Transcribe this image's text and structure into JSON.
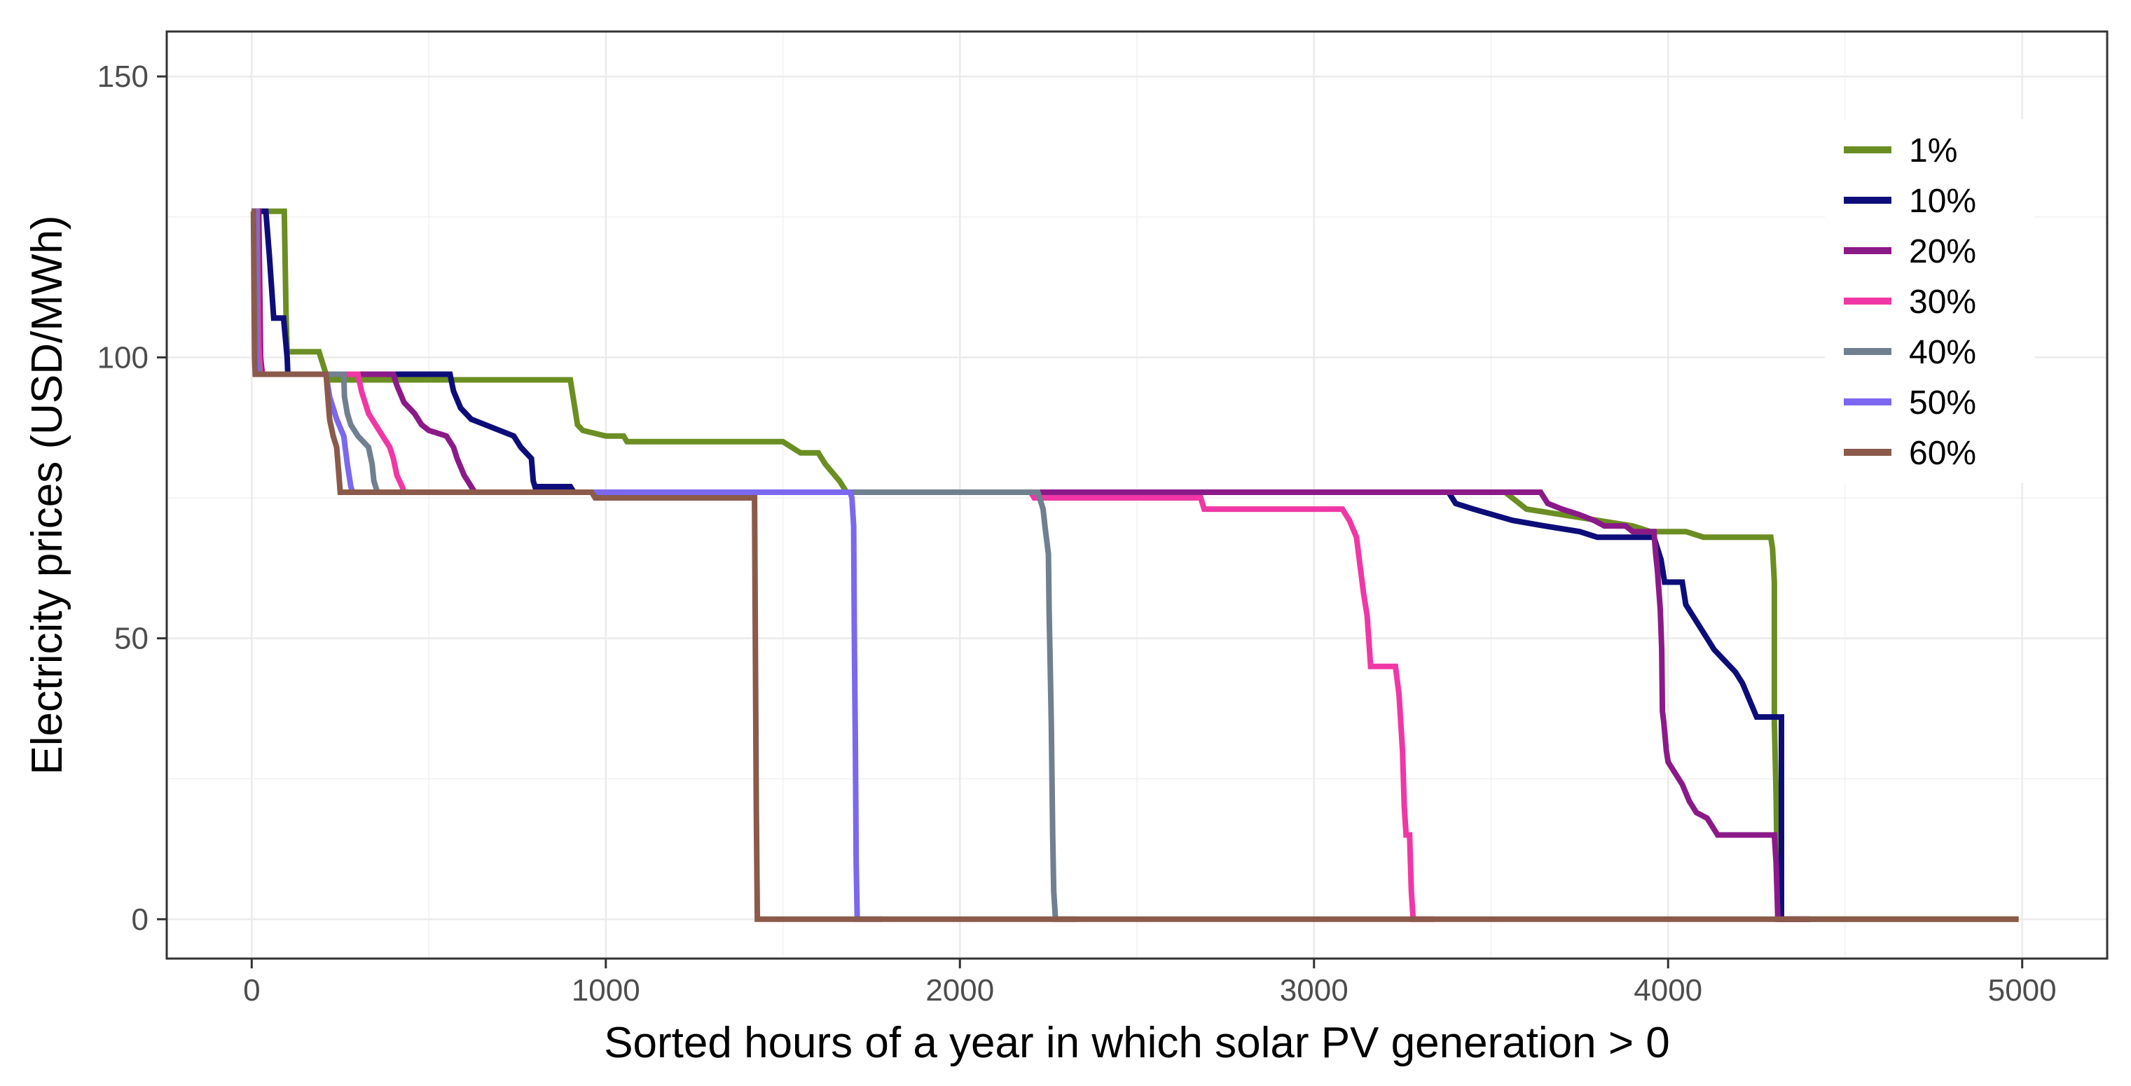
{
  "chart_data": {
    "type": "line",
    "title": "",
    "xlabel": "Sorted hours of a year in which solar PV generation > 0",
    "ylabel": "Electricity prices (USD/MWh)",
    "xlim": [
      -240,
      5240
    ],
    "ylim": [
      -7,
      158
    ],
    "x_ticks": [
      0,
      1000,
      2000,
      3000,
      4000,
      5000
    ],
    "x_tick_labels": [
      "0",
      "1000",
      "2000",
      "3000",
      "4000",
      "5000"
    ],
    "y_ticks": [
      0,
      50,
      100,
      150
    ],
    "y_tick_labels": [
      "0",
      "50",
      "100",
      "150"
    ],
    "grid": true,
    "legend_position": "top-right",
    "series": [
      {
        "name": "1%",
        "color": "#6b8e23",
        "points": [
          [
            0,
            126
          ],
          [
            92,
            126
          ],
          [
            97,
            108
          ],
          [
            100,
            101
          ],
          [
            190,
            101
          ],
          [
            200,
            99
          ],
          [
            215,
            96
          ],
          [
            900,
            96
          ],
          [
            910,
            92
          ],
          [
            920,
            88
          ],
          [
            935,
            87
          ],
          [
            1000,
            86
          ],
          [
            1050,
            86
          ],
          [
            1060,
            85
          ],
          [
            1500,
            85
          ],
          [
            1550,
            83
          ],
          [
            1600,
            83
          ],
          [
            1620,
            81
          ],
          [
            1660,
            78
          ],
          [
            1680,
            76
          ],
          [
            3400,
            76
          ],
          [
            3540,
            76
          ],
          [
            3600,
            73
          ],
          [
            3700,
            72
          ],
          [
            3800,
            71
          ],
          [
            3900,
            70
          ],
          [
            3950,
            69
          ],
          [
            4050,
            69
          ],
          [
            4100,
            68
          ],
          [
            4290,
            68
          ],
          [
            4295,
            66
          ],
          [
            4300,
            60
          ],
          [
            4300,
            35
          ],
          [
            4305,
            22
          ],
          [
            4310,
            0
          ],
          [
            4990,
            0
          ]
        ]
      },
      {
        "name": "10%",
        "color": "#0d0d7a",
        "points": [
          [
            0,
            126
          ],
          [
            40,
            126
          ],
          [
            50,
            118
          ],
          [
            62,
            107
          ],
          [
            90,
            107
          ],
          [
            100,
            100
          ],
          [
            102,
            97
          ],
          [
            560,
            97
          ],
          [
            570,
            94
          ],
          [
            590,
            91
          ],
          [
            620,
            89
          ],
          [
            660,
            88
          ],
          [
            700,
            87
          ],
          [
            740,
            86
          ],
          [
            760,
            84
          ],
          [
            790,
            82
          ],
          [
            795,
            78
          ],
          [
            800,
            77
          ],
          [
            900,
            77
          ],
          [
            910,
            76
          ],
          [
            3380,
            76
          ],
          [
            3400,
            74
          ],
          [
            3450,
            73
          ],
          [
            3560,
            71
          ],
          [
            3650,
            70
          ],
          [
            3750,
            69
          ],
          [
            3800,
            68
          ],
          [
            3960,
            68
          ],
          [
            3970,
            66
          ],
          [
            3980,
            64
          ],
          [
            3990,
            60
          ],
          [
            4040,
            60
          ],
          [
            4050,
            56
          ],
          [
            4070,
            54
          ],
          [
            4100,
            51
          ],
          [
            4130,
            48
          ],
          [
            4160,
            46
          ],
          [
            4190,
            44
          ],
          [
            4210,
            42
          ],
          [
            4230,
            39
          ],
          [
            4250,
            36
          ],
          [
            4320,
            36
          ],
          [
            4320,
            0
          ],
          [
            4400,
            0
          ]
        ]
      },
      {
        "name": "20%",
        "color": "#8b1a89",
        "points": [
          [
            0,
            126
          ],
          [
            20,
            126
          ],
          [
            25,
            100
          ],
          [
            30,
            97
          ],
          [
            400,
            97
          ],
          [
            410,
            95
          ],
          [
            430,
            92
          ],
          [
            460,
            90
          ],
          [
            480,
            88
          ],
          [
            500,
            87
          ],
          [
            550,
            86
          ],
          [
            570,
            84
          ],
          [
            580,
            82
          ],
          [
            600,
            79
          ],
          [
            610,
            78
          ],
          [
            620,
            77
          ],
          [
            630,
            76
          ],
          [
            3640,
            76
          ],
          [
            3660,
            74
          ],
          [
            3700,
            73
          ],
          [
            3750,
            72
          ],
          [
            3790,
            71
          ],
          [
            3820,
            70
          ],
          [
            3880,
            70
          ],
          [
            3900,
            69
          ],
          [
            3960,
            69
          ],
          [
            3965,
            65
          ],
          [
            3970,
            62
          ],
          [
            3978,
            55
          ],
          [
            3982,
            48
          ],
          [
            3984,
            37
          ],
          [
            3988,
            35
          ],
          [
            3995,
            30
          ],
          [
            4000,
            28
          ],
          [
            4020,
            26
          ],
          [
            4040,
            24
          ],
          [
            4060,
            21
          ],
          [
            4080,
            19
          ],
          [
            4110,
            18
          ],
          [
            4130,
            16
          ],
          [
            4140,
            15
          ],
          [
            4300,
            15
          ],
          [
            4305,
            10
          ],
          [
            4310,
            0
          ],
          [
            4390,
            0
          ]
        ]
      },
      {
        "name": "30%",
        "color": "#f037a5",
        "points": [
          [
            0,
            126
          ],
          [
            15,
            126
          ],
          [
            20,
            102
          ],
          [
            25,
            97
          ],
          [
            300,
            97
          ],
          [
            310,
            94
          ],
          [
            330,
            90
          ],
          [
            350,
            88
          ],
          [
            370,
            86
          ],
          [
            390,
            84
          ],
          [
            400,
            82
          ],
          [
            410,
            79
          ],
          [
            425,
            77
          ],
          [
            430,
            76
          ],
          [
            2200,
            76
          ],
          [
            2210,
            75
          ],
          [
            2680,
            75
          ],
          [
            2690,
            73
          ],
          [
            3080,
            73
          ],
          [
            3100,
            71
          ],
          [
            3120,
            68
          ],
          [
            3130,
            63
          ],
          [
            3140,
            58
          ],
          [
            3150,
            54
          ],
          [
            3160,
            45
          ],
          [
            3230,
            45
          ],
          [
            3240,
            40
          ],
          [
            3250,
            30
          ],
          [
            3255,
            20
          ],
          [
            3260,
            15
          ],
          [
            3270,
            15
          ],
          [
            3275,
            5
          ],
          [
            3280,
            0
          ],
          [
            3340,
            0
          ]
        ]
      },
      {
        "name": "40%",
        "color": "#708090",
        "points": [
          [
            0,
            126
          ],
          [
            12,
            126
          ],
          [
            15,
            100
          ],
          [
            20,
            97
          ],
          [
            260,
            97
          ],
          [
            262,
            93
          ],
          [
            270,
            90
          ],
          [
            280,
            88
          ],
          [
            300,
            86
          ],
          [
            330,
            84
          ],
          [
            340,
            81
          ],
          [
            345,
            78
          ],
          [
            355,
            76
          ],
          [
            2220,
            76
          ],
          [
            2225,
            75
          ],
          [
            2235,
            73
          ],
          [
            2240,
            70
          ],
          [
            2250,
            65
          ],
          [
            2252,
            55
          ],
          [
            2255,
            45
          ],
          [
            2258,
            35
          ],
          [
            2260,
            25
          ],
          [
            2262,
            15
          ],
          [
            2265,
            5
          ],
          [
            2270,
            0
          ],
          [
            2330,
            0
          ]
        ]
      },
      {
        "name": "50%",
        "color": "#7b68ee",
        "points": [
          [
            0,
            126
          ],
          [
            10,
            126
          ],
          [
            12,
            100
          ],
          [
            15,
            97
          ],
          [
            210,
            97
          ],
          [
            220,
            93
          ],
          [
            240,
            89
          ],
          [
            260,
            86
          ],
          [
            270,
            81
          ],
          [
            280,
            77
          ],
          [
            285,
            76
          ],
          [
            1690,
            76
          ],
          [
            1695,
            75
          ],
          [
            1700,
            70
          ],
          [
            1702,
            50
          ],
          [
            1705,
            30
          ],
          [
            1707,
            10
          ],
          [
            1710,
            0
          ],
          [
            1780,
            0
          ]
        ]
      },
      {
        "name": "60%",
        "color": "#8b5a4a",
        "points": [
          [
            0,
            126
          ],
          [
            5,
            126
          ],
          [
            8,
            100
          ],
          [
            10,
            97
          ],
          [
            210,
            97
          ],
          [
            215,
            93
          ],
          [
            220,
            89
          ],
          [
            230,
            86
          ],
          [
            240,
            84
          ],
          [
            245,
            80
          ],
          [
            250,
            76
          ],
          [
            960,
            76
          ],
          [
            970,
            75
          ],
          [
            1420,
            75
          ],
          [
            1425,
            20
          ],
          [
            1428,
            0
          ],
          [
            4990,
            0
          ]
        ]
      }
    ]
  }
}
